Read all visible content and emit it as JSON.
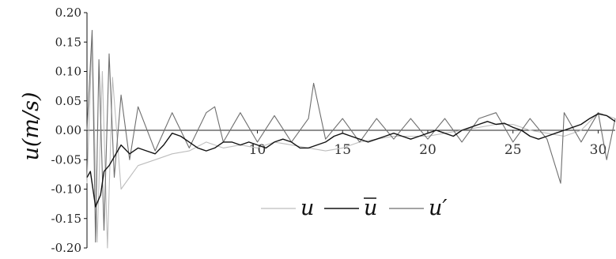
{
  "chart_data": {
    "type": "line",
    "title": "",
    "xlabel": "",
    "ylabel": "u(m/s)",
    "xlim": [
      0,
      31
    ],
    "ylim": [
      -0.2,
      0.2
    ],
    "x_ticks": [
      10,
      15,
      20,
      25,
      30
    ],
    "x_tick_labels": [
      "10",
      "15",
      "20",
      "25",
      "30"
    ],
    "y_ticks": [
      0.2,
      0.15,
      0.1,
      0.05,
      0.0,
      -0.05,
      -0.1,
      -0.15,
      -0.2
    ],
    "y_tick_labels": [
      "0.20",
      "0.15",
      "0.10",
      "0.05",
      "0.00",
      "-0.05",
      "-0.10",
      "-0.15",
      "-0.20"
    ],
    "grid": false,
    "legend_position": "bottom-center",
    "colors": {
      "u": "#bdbdbd",
      "u_mean": "#111111",
      "u_prime": "#6e6e6e"
    },
    "legend": {
      "u": "u",
      "u_mean": "u",
      "u_prime": "u′"
    },
    "series": [
      {
        "name": "u",
        "x": [
          0.0,
          0.3,
          0.6,
          0.9,
          1.2,
          1.5,
          2,
          3,
          4,
          5,
          6,
          7,
          8,
          9,
          10,
          11,
          12,
          13,
          14,
          15,
          16,
          17,
          18,
          19,
          20,
          21,
          22,
          23,
          24,
          25,
          26,
          27,
          28,
          29,
          30,
          31
        ],
        "y": [
          -0.09,
          0.16,
          -0.19,
          0.1,
          -0.2,
          0.09,
          -0.1,
          -0.06,
          -0.05,
          -0.04,
          -0.035,
          -0.02,
          -0.03,
          -0.025,
          -0.03,
          -0.02,
          -0.025,
          -0.03,
          -0.035,
          -0.03,
          -0.02,
          -0.015,
          -0.01,
          -0.01,
          -0.01,
          -0.005,
          0.0,
          0.005,
          0.01,
          0.01,
          0.0,
          -0.005,
          -0.01,
          0.0,
          0.03,
          0.02
        ]
      },
      {
        "name": "u_mean",
        "x": [
          0.0,
          0.2,
          0.5,
          0.8,
          1.0,
          1.3,
          1.6,
          2.0,
          2.5,
          3.0,
          3.5,
          4.0,
          4.5,
          5.0,
          5.5,
          6.0,
          6.5,
          7.0,
          7.5,
          8.0,
          8.5,
          9.0,
          9.5,
          10.0,
          10.5,
          11.0,
          11.5,
          12.0,
          12.5,
          13.0,
          13.5,
          14.0,
          14.5,
          15.0,
          15.5,
          16.0,
          16.5,
          17.0,
          17.5,
          18.0,
          18.5,
          19.0,
          19.5,
          20.0,
          20.5,
          21.0,
          21.5,
          22.0,
          22.5,
          23.0,
          23.5,
          24.0,
          24.5,
          25.0,
          25.5,
          26.0,
          26.5,
          27.0,
          27.5,
          28.0,
          28.5,
          29.0,
          29.5,
          30.0,
          30.5,
          31.0
        ],
        "y": [
          -0.08,
          -0.07,
          -0.13,
          -0.11,
          -0.07,
          -0.06,
          -0.045,
          -0.025,
          -0.04,
          -0.03,
          -0.035,
          -0.04,
          -0.025,
          -0.005,
          -0.01,
          -0.02,
          -0.03,
          -0.035,
          -0.03,
          -0.02,
          -0.02,
          -0.025,
          -0.02,
          -0.025,
          -0.03,
          -0.02,
          -0.015,
          -0.02,
          -0.03,
          -0.03,
          -0.025,
          -0.02,
          -0.01,
          -0.005,
          -0.01,
          -0.015,
          -0.02,
          -0.015,
          -0.01,
          -0.005,
          -0.01,
          -0.015,
          -0.01,
          -0.005,
          0.0,
          -0.005,
          -0.01,
          0.0,
          0.005,
          0.01,
          0.015,
          0.01,
          0.012,
          0.005,
          0.0,
          -0.01,
          -0.015,
          -0.01,
          -0.005,
          0.0,
          0.005,
          0.01,
          0.02,
          0.028,
          0.025,
          0.015
        ]
      },
      {
        "name": "u_prime",
        "x": [
          0.0,
          0.3,
          0.5,
          0.7,
          1.0,
          1.3,
          1.6,
          2.0,
          2.5,
          3.0,
          4.0,
          5.0,
          6.0,
          7.0,
          7.5,
          8.0,
          9.0,
          10.0,
          11.0,
          12.0,
          13.0,
          13.3,
          14.0,
          15.0,
          16.0,
          17.0,
          18.0,
          19.0,
          20.0,
          21.0,
          22.0,
          23.0,
          24.0,
          25.0,
          26.0,
          27.0,
          27.8,
          28.0,
          29.0,
          30.0,
          30.5,
          31.0
        ],
        "y": [
          0.0,
          0.17,
          -0.19,
          0.12,
          -0.17,
          0.13,
          -0.08,
          0.06,
          -0.05,
          0.04,
          -0.035,
          0.03,
          -0.03,
          0.03,
          0.04,
          -0.02,
          0.03,
          -0.02,
          0.025,
          -0.02,
          0.02,
          0.08,
          -0.015,
          0.02,
          -0.02,
          0.02,
          -0.015,
          0.02,
          -0.015,
          0.02,
          -0.02,
          0.02,
          0.03,
          -0.02,
          0.02,
          -0.015,
          -0.09,
          0.03,
          -0.02,
          0.03,
          -0.05,
          0.02
        ]
      }
    ]
  }
}
